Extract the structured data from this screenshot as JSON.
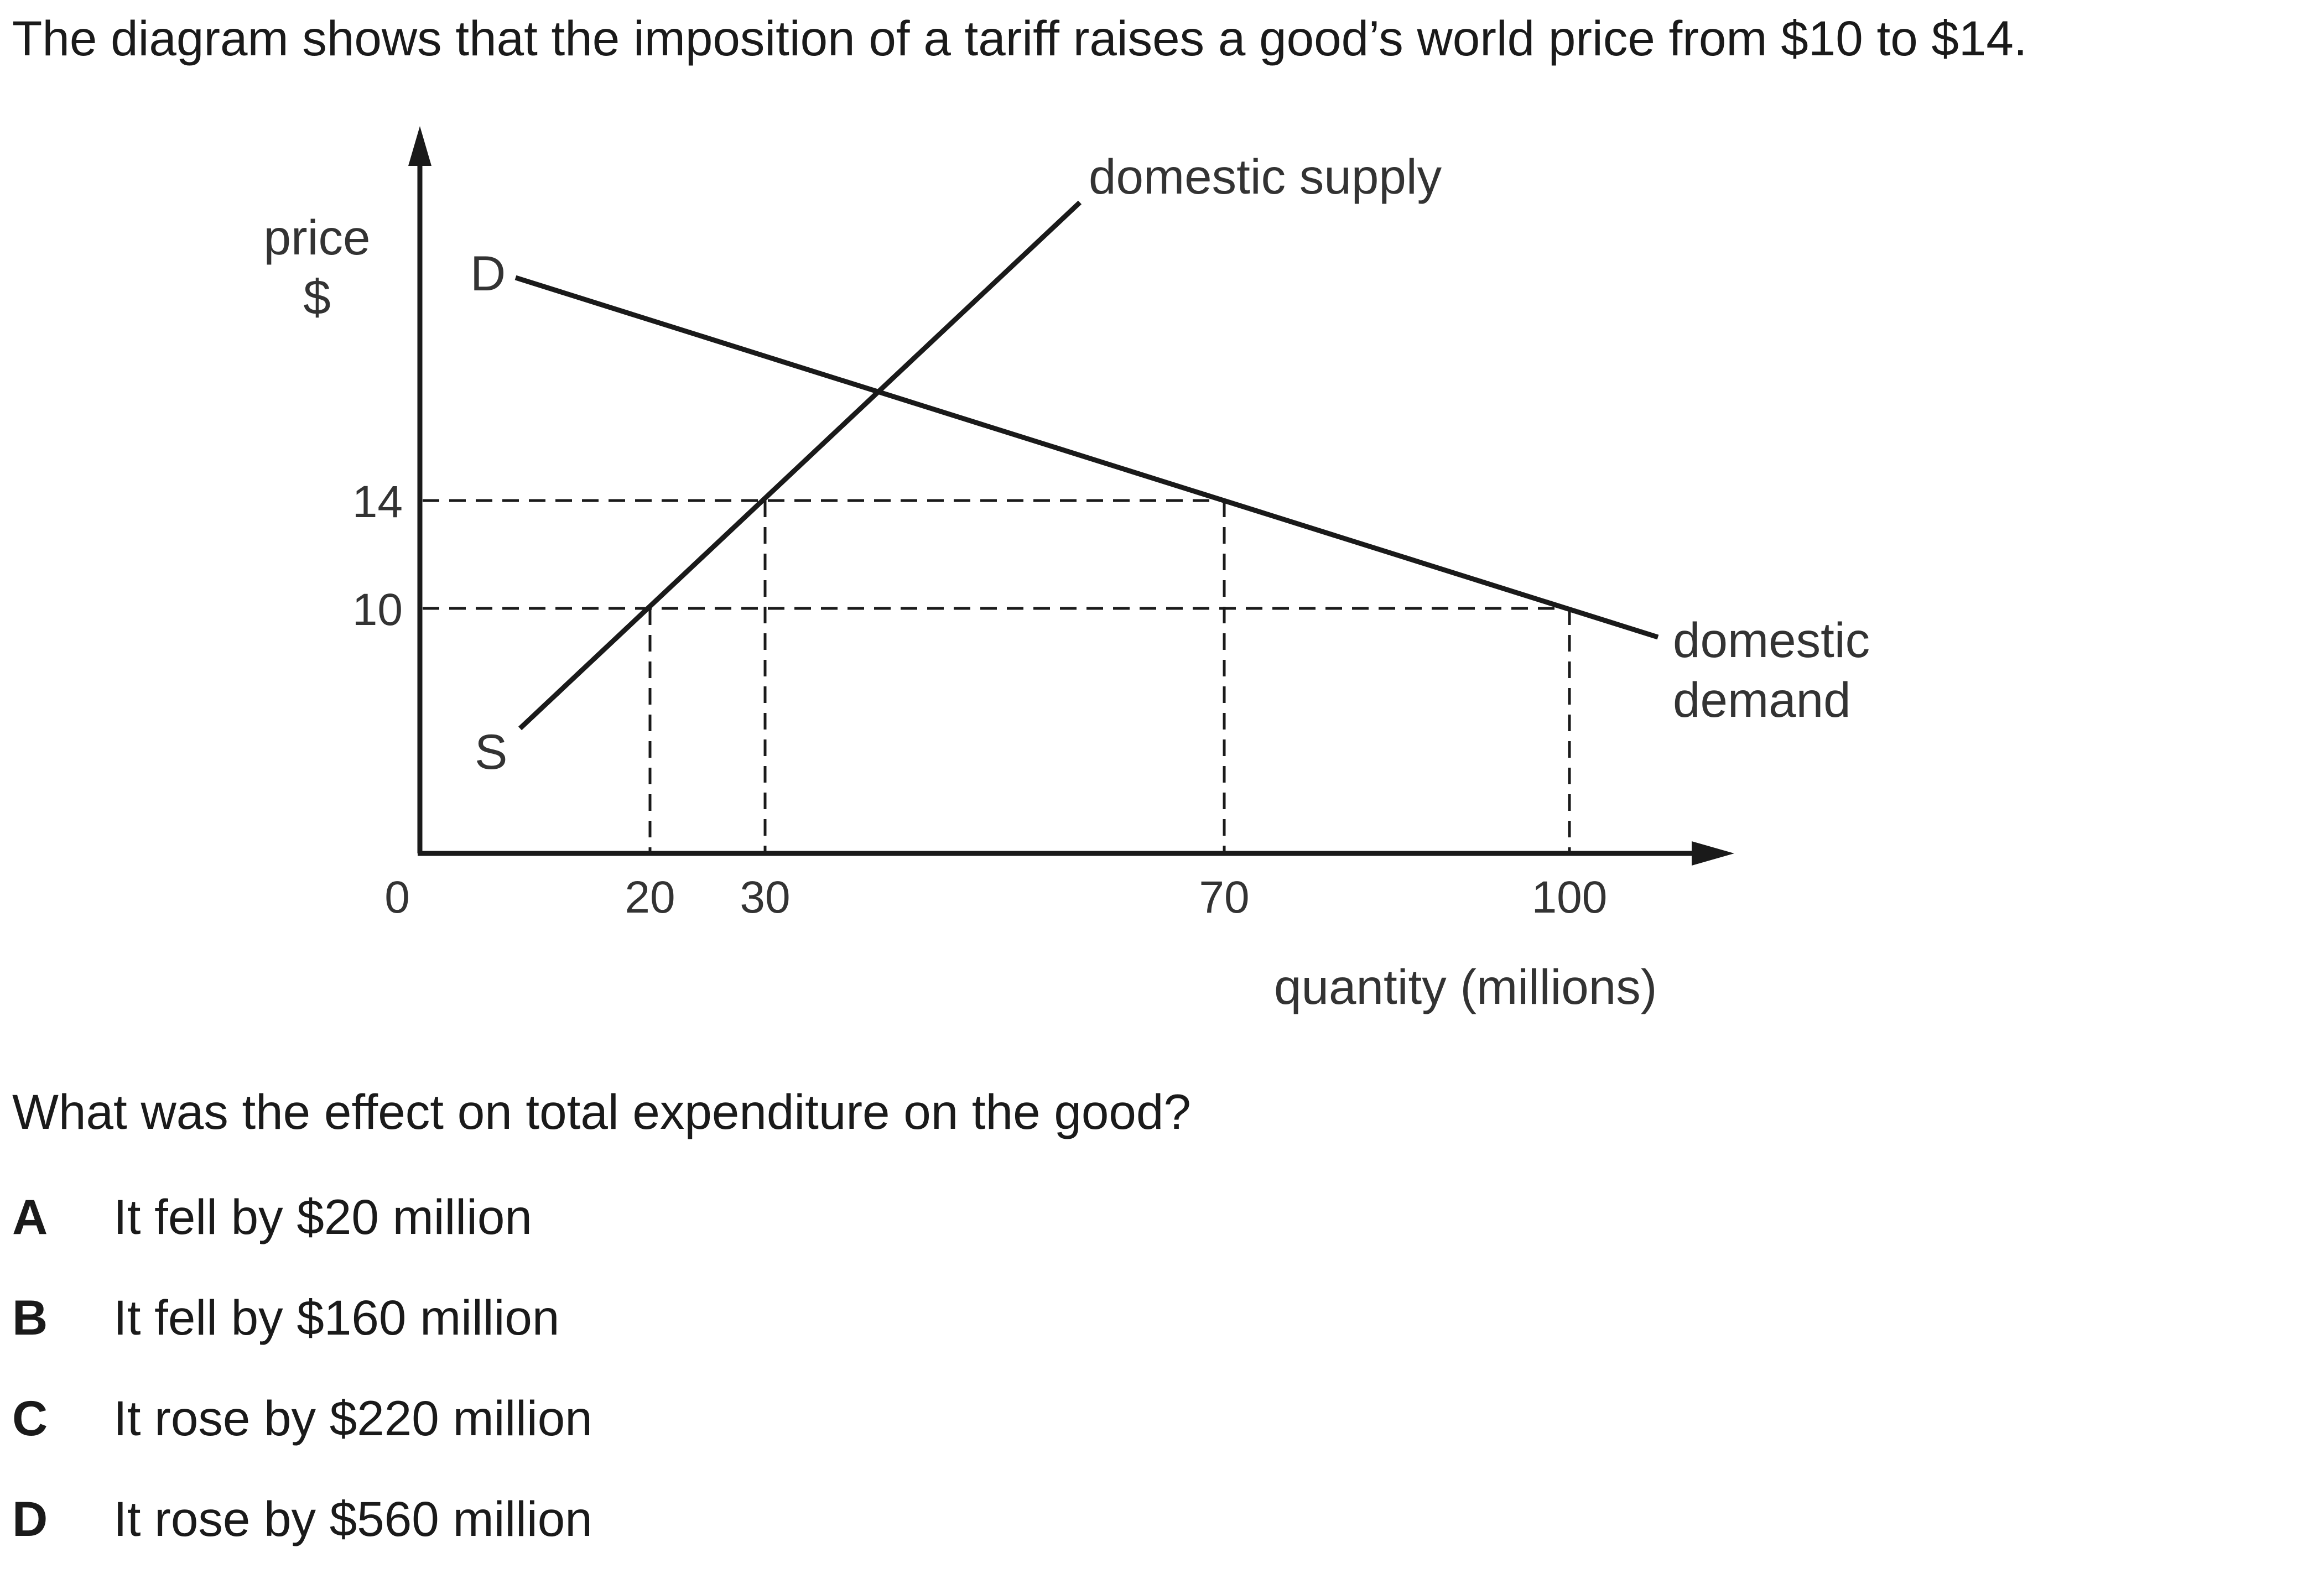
{
  "intro_text": "The diagram shows that the imposition of a tariff raises a good’s world price from $10 to $14.",
  "diagram": {
    "y_axis_label_line1": "price",
    "y_axis_label_line2": "$",
    "x_axis_label": "quantity (millions)",
    "origin_label": "0",
    "y_ticks": [
      "14",
      "10"
    ],
    "x_ticks": [
      "20",
      "30",
      "70",
      "100"
    ],
    "demand_start_label": "D",
    "supply_start_label": "S",
    "supply_curve_label": "domestic supply",
    "demand_curve_label_line1": "domestic",
    "demand_curve_label_line2": "demand",
    "price_levels": [
      10,
      14
    ],
    "quantities_at_10": {
      "domestic_supply": 20,
      "domestic_demand": 100
    },
    "quantities_at_14": {
      "domestic_supply": 30,
      "domestic_demand": 70
    }
  },
  "question_text": "What was the effect on total expenditure on the good?",
  "options": [
    {
      "letter": "A",
      "text": "It fell by $20 million"
    },
    {
      "letter": "B",
      "text": "It fell by $160 million"
    },
    {
      "letter": "C",
      "text": "It rose by $220 million"
    },
    {
      "letter": "D",
      "text": "It rose by $560 million"
    }
  ]
}
